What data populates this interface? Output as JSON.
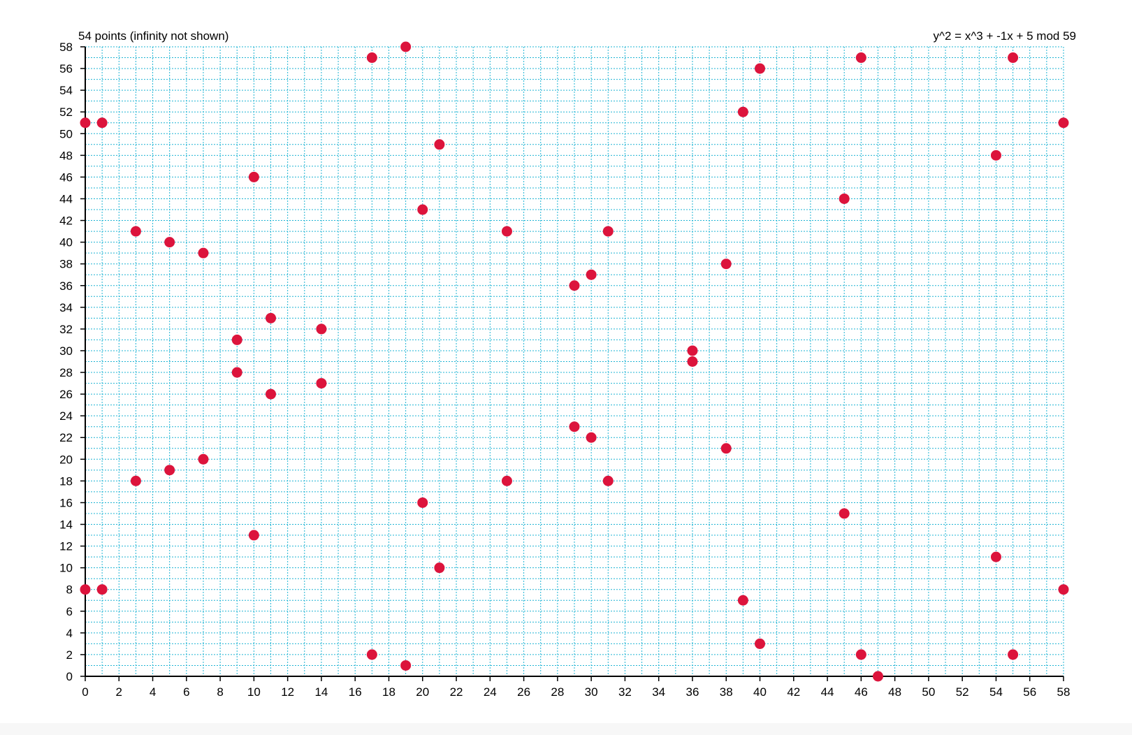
{
  "colors": {
    "grid": "#1eb4d4",
    "point": "#dc143c",
    "axis": "#000000",
    "background": "#ffffff"
  },
  "chart_data": {
    "type": "scatter",
    "title": "y^2 = x^3 + -1x + 5 mod 59",
    "subtitle": "54 points (infinity not shown)",
    "xlabel": "",
    "ylabel": "",
    "xlim": [
      0,
      58
    ],
    "ylim": [
      0,
      58
    ],
    "grid": true,
    "x_ticks": [
      "0",
      "2",
      "4",
      "6",
      "8",
      "10",
      "12",
      "14",
      "16",
      "18",
      "20",
      "22",
      "24",
      "26",
      "28",
      "30",
      "32",
      "34",
      "36",
      "38",
      "40",
      "42",
      "44",
      "46",
      "48",
      "50",
      "52",
      "54",
      "56",
      "58"
    ],
    "y_ticks": [
      "0",
      "2",
      "4",
      "6",
      "8",
      "10",
      "12",
      "14",
      "16",
      "18",
      "20",
      "22",
      "24",
      "26",
      "28",
      "30",
      "32",
      "34",
      "36",
      "38",
      "40",
      "42",
      "44",
      "46",
      "48",
      "50",
      "52",
      "54",
      "56",
      "58"
    ],
    "points": [
      [
        0,
        8
      ],
      [
        0,
        51
      ],
      [
        1,
        8
      ],
      [
        1,
        51
      ],
      [
        3,
        18
      ],
      [
        3,
        41
      ],
      [
        5,
        19
      ],
      [
        5,
        40
      ],
      [
        7,
        20
      ],
      [
        7,
        39
      ],
      [
        9,
        28
      ],
      [
        9,
        31
      ],
      [
        10,
        13
      ],
      [
        10,
        46
      ],
      [
        11,
        26
      ],
      [
        11,
        33
      ],
      [
        14,
        27
      ],
      [
        14,
        32
      ],
      [
        17,
        2
      ],
      [
        17,
        57
      ],
      [
        19,
        1
      ],
      [
        19,
        58
      ],
      [
        20,
        16
      ],
      [
        20,
        43
      ],
      [
        21,
        10
      ],
      [
        21,
        49
      ],
      [
        25,
        18
      ],
      [
        25,
        41
      ],
      [
        29,
        23
      ],
      [
        29,
        36
      ],
      [
        30,
        22
      ],
      [
        30,
        37
      ],
      [
        31,
        18
      ],
      [
        31,
        41
      ],
      [
        36,
        29
      ],
      [
        36,
        30
      ],
      [
        38,
        21
      ],
      [
        38,
        38
      ],
      [
        39,
        7
      ],
      [
        39,
        52
      ],
      [
        40,
        3
      ],
      [
        40,
        56
      ],
      [
        45,
        15
      ],
      [
        45,
        44
      ],
      [
        46,
        2
      ],
      [
        46,
        57
      ],
      [
        47,
        0
      ],
      [
        54,
        11
      ],
      [
        54,
        48
      ],
      [
        55,
        2
      ],
      [
        55,
        57
      ],
      [
        58,
        8
      ],
      [
        58,
        51
      ]
    ]
  }
}
